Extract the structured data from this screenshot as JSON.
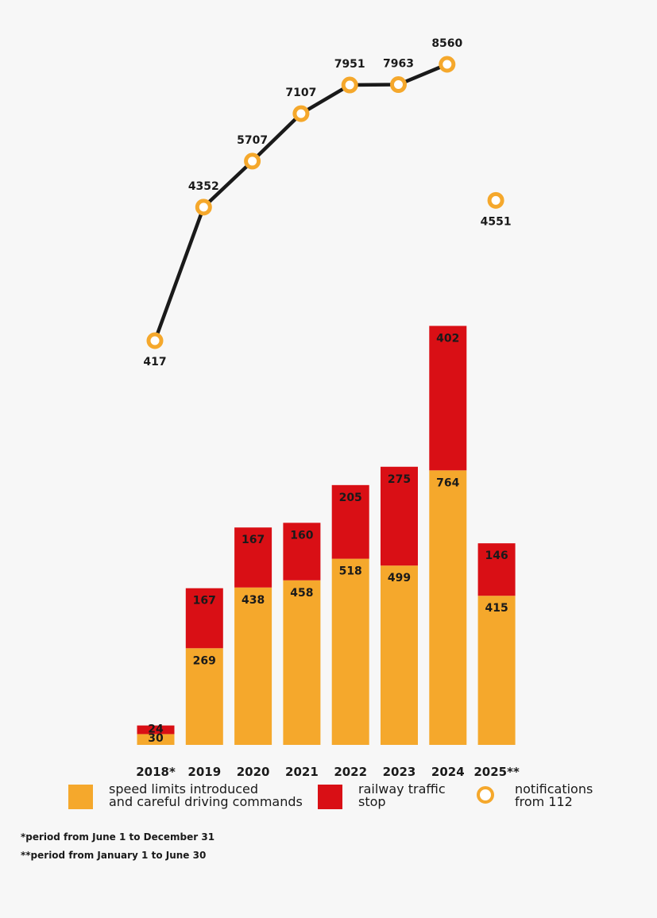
{
  "chart_data": {
    "type": "bar",
    "stacked": true,
    "categories": [
      "2018*",
      "2019",
      "2020",
      "2021",
      "2022",
      "2023",
      "2024",
      "2025**"
    ],
    "series": [
      {
        "name": "speed limits introduced\nand careful driving commands",
        "type": "bar",
        "color": "#f5a82c",
        "values": [
          30,
          269,
          438,
          458,
          518,
          499,
          764,
          415
        ]
      },
      {
        "name": "railway traffic\nstop",
        "type": "bar",
        "color": "#d90f15",
        "values": [
          24,
          167,
          167,
          160,
          205,
          275,
          402,
          146
        ]
      },
      {
        "name": "notifications\nfrom 112",
        "type": "line",
        "color": "#f5a82c",
        "line_color": "#1a1a1a",
        "values": [
          417,
          4352,
          5707,
          7107,
          7951,
          7963,
          8560,
          4551
        ],
        "connected_through": "2024"
      }
    ],
    "legend": "bottom",
    "grid": false,
    "notes": [
      "*period from June 1 to December 31",
      "**period from January 1 to June 30"
    ]
  }
}
